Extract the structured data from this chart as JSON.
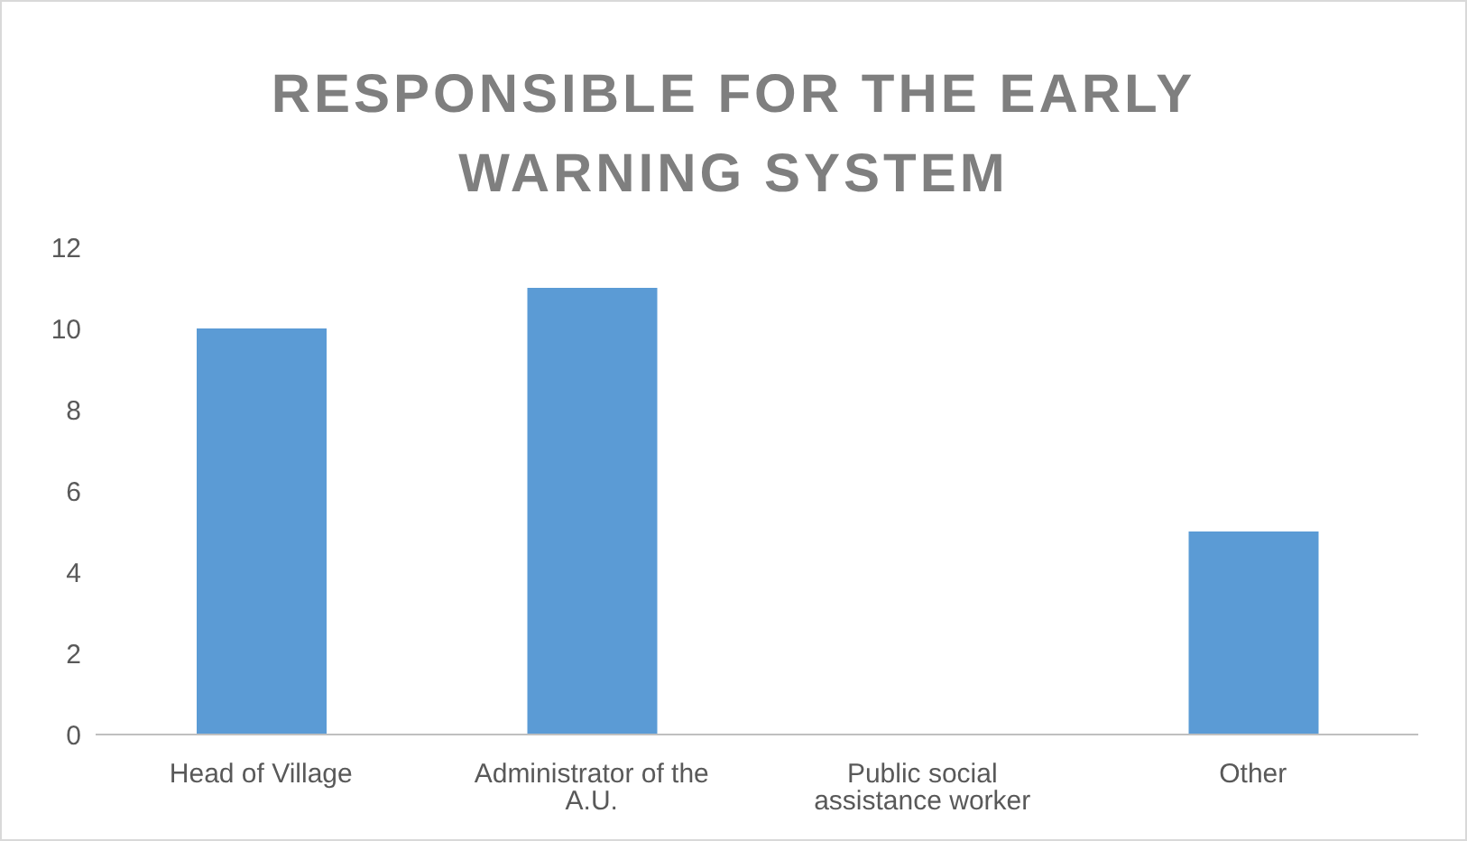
{
  "chart_data": {
    "type": "bar",
    "title": "RESPONSIBLE FOR THE EARLY WARNING SYSTEM",
    "categories": [
      "Head of Village",
      "Administrator of the A.U.",
      "Public social assistance worker",
      "Other"
    ],
    "values": [
      10,
      11,
      0,
      5
    ],
    "color": "#5b9bd5",
    "ylim": [
      0,
      12
    ],
    "yticks": [
      0,
      2,
      4,
      6,
      8,
      10,
      12
    ],
    "grid": false,
    "legend": false
  }
}
